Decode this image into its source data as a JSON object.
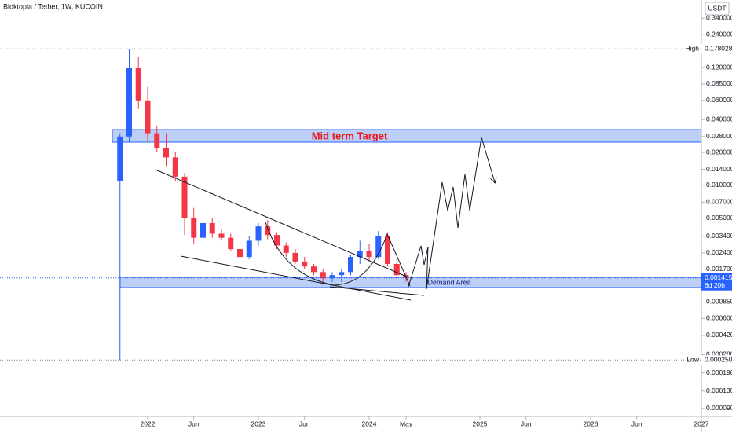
{
  "header": {
    "title": "Bloktopia / Tether, 1W, KUCOIN",
    "currency": "USDT"
  },
  "chart_data": {
    "type": "candlestick",
    "log_scale": true,
    "grid": false,
    "up_color": "#2962ff",
    "down_color": "#f23645",
    "x": [
      "2021-10",
      "2021-11",
      "2021-12",
      "2022-01",
      "2022-02",
      "2022-03",
      "2022-04",
      "2022-05",
      "2022-06",
      "2022-07",
      "2022-08",
      "2022-09",
      "2022-10",
      "2022-11",
      "2022-12",
      "2023-01",
      "2023-02",
      "2023-03",
      "2023-04",
      "2023-05",
      "2023-06",
      "2023-07",
      "2023-08",
      "2023-09",
      "2023-10",
      "2023-11",
      "2023-12",
      "2024-01",
      "2024-02",
      "2024-03",
      "2024-04",
      "2024-05"
    ],
    "open": [
      0.011,
      0.028,
      0.12,
      0.06,
      0.03,
      0.022,
      0.018,
      0.012,
      0.005,
      0.0033,
      0.0045,
      0.0036,
      0.0033,
      0.0026,
      0.0022,
      0.0031,
      0.0042,
      0.0035,
      0.0028,
      0.0024,
      0.002,
      0.0018,
      0.0016,
      0.0014,
      0.0015,
      0.0016,
      0.0022,
      0.0025,
      0.0022,
      0.0034,
      0.0019,
      0.0015
    ],
    "high": [
      0.03,
      0.178028,
      0.15,
      0.08,
      0.035,
      0.03,
      0.02,
      0.013,
      0.0062,
      0.0068,
      0.005,
      0.004,
      0.0036,
      0.0029,
      0.0034,
      0.0045,
      0.0048,
      0.0037,
      0.003,
      0.0026,
      0.0022,
      0.0019,
      0.0017,
      0.0016,
      0.0017,
      0.0023,
      0.0031,
      0.0029,
      0.0038,
      0.0037,
      0.0021,
      0.0016
    ],
    "low": [
      0.00025,
      0.025,
      0.05,
      0.025,
      0.02,
      0.015,
      0.011,
      0.0035,
      0.0029,
      0.003,
      0.0033,
      0.0031,
      0.0025,
      0.002,
      0.0021,
      0.0028,
      0.0032,
      0.0026,
      0.0022,
      0.0019,
      0.0017,
      0.0015,
      0.0013,
      0.0013,
      0.0013,
      0.0015,
      0.0019,
      0.002,
      0.0021,
      0.0018,
      0.0014,
      0.0013
    ],
    "close": [
      0.028,
      0.12,
      0.06,
      0.03,
      0.022,
      0.018,
      0.012,
      0.005,
      0.0033,
      0.0045,
      0.0036,
      0.0033,
      0.0026,
      0.0022,
      0.0031,
      0.0042,
      0.0035,
      0.0028,
      0.0024,
      0.002,
      0.0018,
      0.0016,
      0.0014,
      0.0015,
      0.0016,
      0.0022,
      0.0025,
      0.0022,
      0.0034,
      0.0019,
      0.0015,
      0.001415
    ],
    "xlim": [
      "2020-09",
      "2027-01"
    ],
    "xticks": [
      {
        "value": "2022-01",
        "label": "2022"
      },
      {
        "value": "2022-06",
        "label": "Jun"
      },
      {
        "value": "2023-01",
        "label": "2023"
      },
      {
        "value": "2023-06",
        "label": "Jun"
      },
      {
        "value": "2024-01",
        "label": "2024"
      },
      {
        "value": "2024-05",
        "label": "May"
      },
      {
        "value": "2025-01",
        "label": "2025"
      },
      {
        "value": "2025-06",
        "label": "Jun"
      },
      {
        "value": "2026-01",
        "label": "2026"
      },
      {
        "value": "2026-06",
        "label": "Jun"
      },
      {
        "value": "2027-01",
        "label": "2027"
      }
    ],
    "ylim": [
      7.6e-05,
      0.5
    ],
    "yticks": [
      {
        "value": 0.34,
        "label": "0.340000"
      },
      {
        "value": 0.24,
        "label": "0.240000"
      },
      {
        "value": 0.12,
        "label": "0.120000"
      },
      {
        "value": 0.085,
        "label": "0.085000"
      },
      {
        "value": 0.06,
        "label": "0.060000"
      },
      {
        "value": 0.04,
        "label": "0.040000"
      },
      {
        "value": 0.028,
        "label": "0.028000"
      },
      {
        "value": 0.02,
        "label": "0.020000"
      },
      {
        "value": 0.014,
        "label": "0.014000"
      },
      {
        "value": 0.01,
        "label": "0.010000"
      },
      {
        "value": 0.007,
        "label": "0.007000"
      },
      {
        "value": 0.005,
        "label": "0.005000"
      },
      {
        "value": 0.0034,
        "label": "0.003400"
      },
      {
        "value": 0.0024,
        "label": "0.002400"
      },
      {
        "value": 0.0017,
        "label": "0.001700"
      },
      {
        "value": 0.00085,
        "label": "0.000850"
      },
      {
        "value": 0.0006,
        "label": "0.000600"
      },
      {
        "value": 0.00042,
        "label": "0.000420"
      },
      {
        "value": 0.00028,
        "label": "0.000280"
      },
      {
        "value": 0.00019,
        "label": "0.000190"
      },
      {
        "value": 0.00013,
        "label": "0.000130"
      },
      {
        "value": 9e-05,
        "label": "0.000090"
      }
    ],
    "price_lines": [
      {
        "name": "High",
        "value": 0.178028
      },
      {
        "name": "Low",
        "value": 0.00025,
        "value_label": "0.000250"
      }
    ],
    "last": {
      "value": 0.001415,
      "countdown": "6d 20h"
    },
    "annotations": [
      {
        "text": "Mid term Target"
      },
      {
        "text": "Demand Area"
      }
    ]
  }
}
